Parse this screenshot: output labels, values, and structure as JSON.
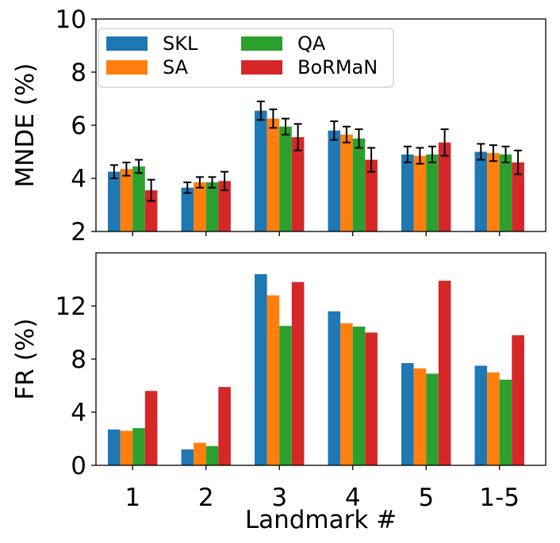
{
  "chart_data": [
    {
      "type": "bar",
      "title": "",
      "xlabel": "",
      "ylabel": "MNDE (%)",
      "ylim": [
        2,
        10
      ],
      "yticks": [
        "2",
        "4",
        "6",
        "8",
        "10"
      ],
      "ytick_values": [
        2,
        4,
        6,
        8,
        10
      ],
      "categories": [
        "1",
        "2",
        "3",
        "4",
        "5",
        "1-5"
      ],
      "legend": {
        "position": "top-left",
        "columns": 2
      },
      "series": [
        {
          "name": "SKL",
          "color": "#1f77b4",
          "values": [
            4.25,
            3.65,
            6.55,
            5.8,
            4.9,
            5.0
          ],
          "errors": [
            0.25,
            0.2,
            0.35,
            0.35,
            0.3,
            0.3
          ]
        },
        {
          "name": "SA",
          "color": "#ff7f0e",
          "values": [
            4.35,
            3.85,
            6.25,
            5.65,
            4.85,
            4.95
          ],
          "errors": [
            0.25,
            0.2,
            0.35,
            0.3,
            0.3,
            0.3
          ]
        },
        {
          "name": "QA",
          "color": "#2ca02c",
          "values": [
            4.45,
            3.85,
            5.95,
            5.5,
            4.9,
            4.9
          ],
          "errors": [
            0.25,
            0.2,
            0.3,
            0.35,
            0.3,
            0.3
          ]
        },
        {
          "name": "BoRMaN",
          "color": "#d62728",
          "values": [
            3.55,
            3.9,
            5.55,
            4.7,
            5.35,
            4.6
          ],
          "errors": [
            0.4,
            0.35,
            0.5,
            0.45,
            0.5,
            0.45
          ]
        }
      ]
    },
    {
      "type": "bar",
      "title": "",
      "xlabel": "Landmark #",
      "ylabel": "FR (%)",
      "ylim": [
        0,
        16
      ],
      "yticks": [
        "0",
        "4",
        "8",
        "12"
      ],
      "ytick_values": [
        0,
        4,
        8,
        12
      ],
      "categories": [
        "1",
        "2",
        "3",
        "4",
        "5",
        "1-5"
      ],
      "series": [
        {
          "name": "SKL",
          "color": "#1f77b4",
          "values": [
            2.7,
            1.2,
            14.4,
            11.6,
            7.7,
            7.5
          ]
        },
        {
          "name": "SA",
          "color": "#ff7f0e",
          "values": [
            2.6,
            1.7,
            12.8,
            10.7,
            7.3,
            7.0
          ]
        },
        {
          "name": "QA",
          "color": "#2ca02c",
          "values": [
            2.8,
            1.45,
            10.5,
            10.45,
            6.9,
            6.45
          ]
        },
        {
          "name": "BoRMaN",
          "color": "#d62728",
          "values": [
            5.6,
            5.9,
            13.8,
            10.0,
            13.9,
            9.8
          ]
        }
      ]
    }
  ]
}
